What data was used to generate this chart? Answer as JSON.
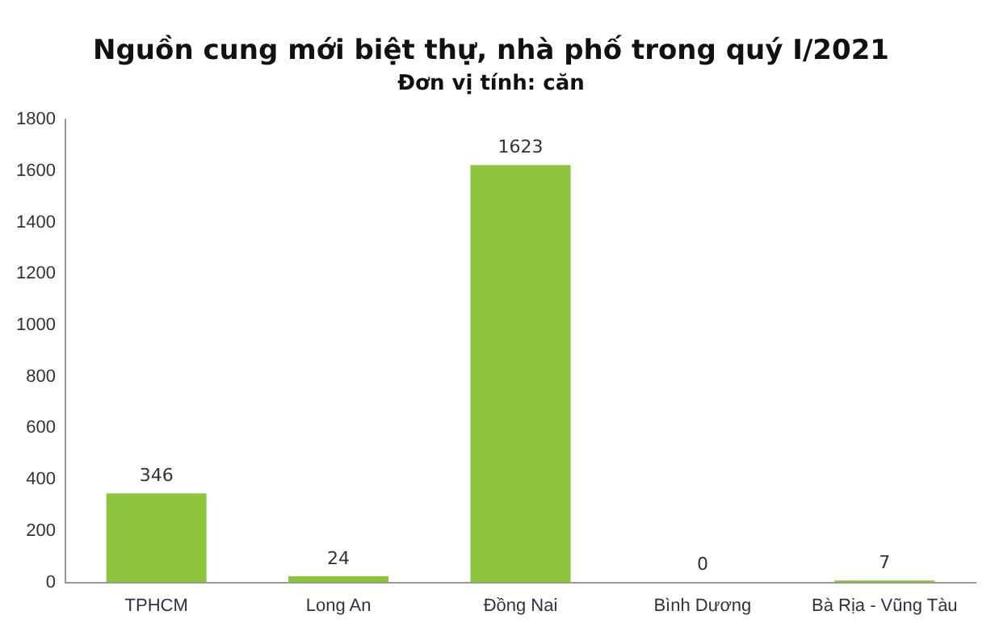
{
  "chart_data": {
    "type": "bar",
    "title": "Nguồn cung mới biệt thự, nhà phố trong quý I/2021",
    "subtitle": "Đơn vị tính: căn",
    "categories": [
      "TPHCM",
      "Long An",
      "Đồng Nai",
      "Bình Dương",
      "Bà Rịa - Vũng Tàu"
    ],
    "values": [
      346,
      24,
      1623,
      0,
      7
    ],
    "color": "#8cc43c",
    "ylim": [
      0,
      1800
    ],
    "yticks": [
      0,
      200,
      400,
      600,
      800,
      1000,
      1200,
      1400,
      1600,
      1800
    ],
    "grid": false,
    "legend": false,
    "data_labels": true
  }
}
